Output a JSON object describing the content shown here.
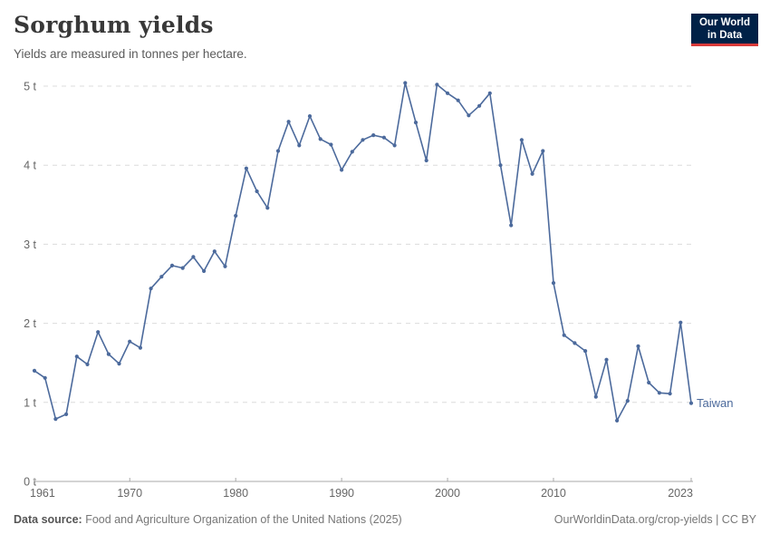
{
  "header": {
    "title": "Sorghum yields",
    "subtitle": "Yields are measured in tonnes per hectare.",
    "logo": {
      "line1": "Our World",
      "line2": "in Data"
    }
  },
  "footer": {
    "source_label": "Data source:",
    "source_text": " Food and Agriculture Organization of the United Nations (2025)",
    "link_text": "OurWorldinData.org/crop-yields | CC BY"
  },
  "colors": {
    "line": "#4C6A9C",
    "logo_navy": "#002147",
    "logo_red": "#D93A3A",
    "axis_text": "#666666"
  },
  "chart_data": {
    "type": "line",
    "title": "Sorghum yields",
    "subtitle": "Yields are measured in tonnes per hectare.",
    "xlabel": "",
    "ylabel": "tonnes per hectare",
    "unit": "t",
    "ylim": [
      0,
      5
    ],
    "xlim": [
      1961,
      2023
    ],
    "grid": true,
    "legend_position": "end-of-line",
    "y_ticks": [
      0,
      1,
      2,
      3,
      4,
      5
    ],
    "x_ticks": [
      1961,
      1970,
      1980,
      1990,
      2000,
      2010,
      2023
    ],
    "series": [
      {
        "name": "Taiwan",
        "color": "#4C6A9C",
        "x": [
          1961,
          1962,
          1963,
          1964,
          1965,
          1966,
          1967,
          1968,
          1969,
          1970,
          1971,
          1972,
          1973,
          1974,
          1975,
          1976,
          1977,
          1978,
          1979,
          1980,
          1981,
          1982,
          1983,
          1984,
          1985,
          1986,
          1987,
          1988,
          1989,
          1990,
          1991,
          1992,
          1993,
          1994,
          1995,
          1996,
          1997,
          1998,
          1999,
          2000,
          2001,
          2002,
          2003,
          2004,
          2005,
          2006,
          2007,
          2008,
          2009,
          2010,
          2011,
          2012,
          2013,
          2014,
          2015,
          2016,
          2017,
          2018,
          2019,
          2020,
          2021,
          2022,
          2023
        ],
        "values": [
          1.4,
          1.31,
          0.79,
          0.85,
          1.58,
          1.48,
          1.89,
          1.61,
          1.49,
          1.77,
          1.69,
          2.44,
          2.59,
          2.73,
          2.7,
          2.84,
          2.66,
          2.91,
          2.72,
          3.36,
          3.96,
          3.67,
          3.46,
          4.18,
          4.55,
          4.25,
          4.62,
          4.33,
          4.26,
          3.94,
          4.17,
          4.32,
          4.38,
          4.35,
          4.25,
          5.04,
          4.54,
          4.06,
          5.02,
          4.91,
          4.82,
          4.63,
          4.75,
          4.91,
          4.0,
          3.24,
          4.32,
          3.89,
          4.18,
          2.51,
          1.85,
          1.75,
          1.65,
          1.07,
          1.54,
          0.77,
          1.02,
          1.71,
          1.25,
          1.12,
          1.11,
          2.01,
          0.99
        ]
      }
    ]
  }
}
